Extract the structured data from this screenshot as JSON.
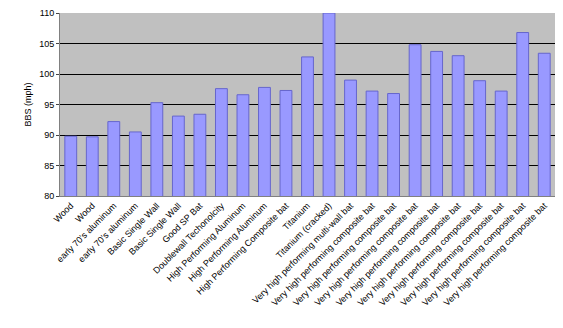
{
  "chart_data": {
    "type": "bar",
    "y_label": "BBS (mph)",
    "categories": [
      "Wood",
      "Wood",
      "early 70's aluminum",
      "early 70's aluminum",
      "Basic Single Wall",
      "Basic Single Wall",
      "Good SP Bat",
      "Doublewall Techonolcity",
      "High Performing Aluminum",
      "High Performing Aluminum",
      "High Performing Composite bat",
      "Titanium",
      "Titanium (cracked)",
      "Very high performing multi-wall bat",
      "Very high performing composite bat",
      "Very high performing composite bat",
      "Very high performing composite bat",
      "Very high performing composite bat",
      "Very high performing composite bat",
      "Very high performing composite bat",
      "Very high performing composite bat",
      "Very high performing composite bat",
      "Very high performing composite bat"
    ],
    "values": [
      89.8,
      89.7,
      92.2,
      90.5,
      95.3,
      93.1,
      93.4,
      97.6,
      96.6,
      97.8,
      97.3,
      102.8,
      110,
      99.0,
      97.2,
      96.8,
      104.8,
      103.7,
      103.0,
      98.9,
      97.2,
      106.8,
      103.4
    ],
    "color": "#9999ff",
    "ylim": [
      80,
      110
    ],
    "yticks": [
      80,
      85,
      90,
      95,
      100,
      105,
      110
    ],
    "grid": true
  }
}
